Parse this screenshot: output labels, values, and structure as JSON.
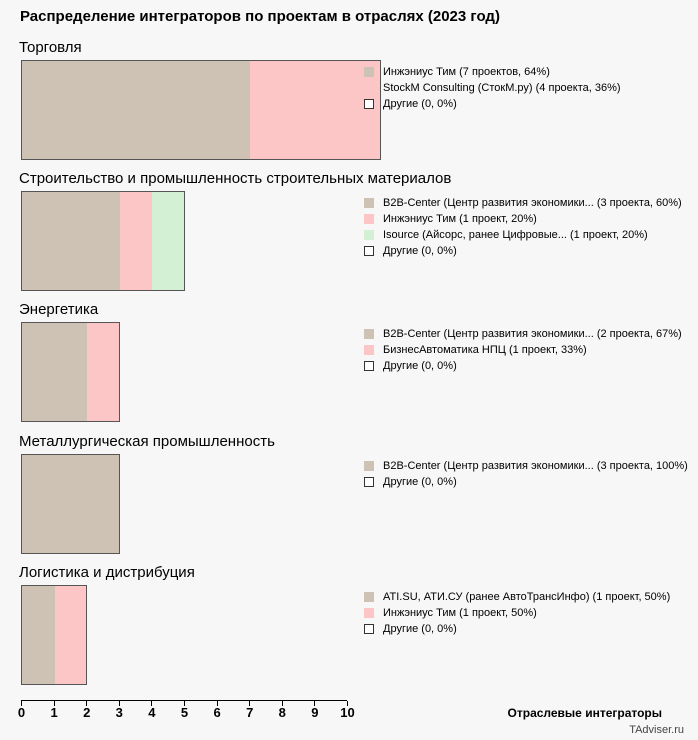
{
  "chart_data": {
    "type": "bar",
    "title": "Распределение интеграторов по проектам в отраслях (2023 год)",
    "xlabel": "Отраслевые интеграторы",
    "xlim": [
      0,
      10
    ],
    "x_ticks": [
      "0",
      "1",
      "2",
      "3",
      "4",
      "5",
      "6",
      "7",
      "8",
      "9",
      "10"
    ],
    "credit": "TAdviser.ru",
    "sections": [
      {
        "title": "Торговля",
        "segments": [
          {
            "value": 7,
            "color": "#cdc2b4",
            "label": "Инжэниус Тим (7 проектов, 64%)"
          },
          {
            "value": 4,
            "color": "#fcc6c6",
            "label": "StockM Consulting (СтокМ.ру) (4 проекта, 36%)"
          },
          {
            "value": 0,
            "color": "",
            "label": "Другие (0, 0%)"
          }
        ]
      },
      {
        "title": "Строительство и промышленность строительных материалов",
        "segments": [
          {
            "value": 3,
            "color": "#cdc2b4",
            "label": "B2B-Center (Центр развития экономики... (3 проекта, 60%)"
          },
          {
            "value": 1,
            "color": "#fcc6c6",
            "label": "Инжэниус Тим (1 проект, 20%)"
          },
          {
            "value": 1,
            "color": "#d4f0d4",
            "label": "Isource (Айсорс, ранее Цифровые... (1 проект, 20%)"
          },
          {
            "value": 0,
            "color": "",
            "label": "Другие (0, 0%)"
          }
        ]
      },
      {
        "title": "Энергетика",
        "segments": [
          {
            "value": 2,
            "color": "#cdc2b4",
            "label": "B2B-Center (Центр развития экономики... (2 проекта, 67%)"
          },
          {
            "value": 1,
            "color": "#fcc6c6",
            "label": "БизнесАвтоматика НПЦ (1 проект, 33%)"
          },
          {
            "value": 0,
            "color": "",
            "label": "Другие (0, 0%)"
          }
        ]
      },
      {
        "title": "Металлургическая промышленность",
        "segments": [
          {
            "value": 3,
            "color": "#cdc2b4",
            "label": "B2B-Center (Центр развития экономики... (3 проекта, 100%)"
          },
          {
            "value": 0,
            "color": "",
            "label": "Другие (0, 0%)"
          }
        ]
      },
      {
        "title": "Логистика и дистрибуция",
        "segments": [
          {
            "value": 1,
            "color": "#cdc2b4",
            "label": "ATI.SU, АТИ.СУ (ранее АвтоТрансИнфо) (1 проект, 50%)"
          },
          {
            "value": 1,
            "color": "#fcc6c6",
            "label": "Инжэниус Тим (1 проект, 50%)"
          },
          {
            "value": 0,
            "color": "",
            "label": "Другие (0, 0%)"
          }
        ]
      }
    ]
  }
}
